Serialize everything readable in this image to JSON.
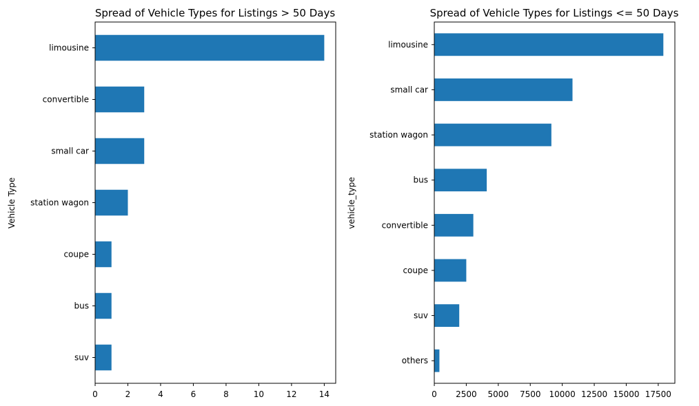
{
  "chart_data": [
    {
      "type": "bar",
      "orientation": "horizontal",
      "title": "Spread of Vehicle Types for Listings > 50 Days",
      "xlabel": "",
      "ylabel": "Vehicle Type",
      "categories": [
        "limousine",
        "convertible",
        "small car",
        "station wagon",
        "coupe",
        "bus",
        "suv"
      ],
      "values": [
        14,
        3,
        3,
        2,
        1,
        1,
        1
      ],
      "xlim": [
        0,
        14.7
      ],
      "xticks": [
        0,
        2,
        4,
        6,
        8,
        10,
        12,
        14
      ],
      "color": "#1f77b4",
      "grid": false
    },
    {
      "type": "bar",
      "orientation": "horizontal",
      "title": "Spread of Vehicle Types for Listings <= 50 Days",
      "xlabel": "",
      "ylabel": "vehicle_type",
      "categories": [
        "limousine",
        "small car",
        "station wagon",
        "bus",
        "convertible",
        "coupe",
        "suv",
        "others"
      ],
      "values": [
        17900,
        10800,
        9150,
        4100,
        3050,
        2500,
        1950,
        400
      ],
      "xlim": [
        0,
        18800
      ],
      "xticks": [
        0,
        2500,
        5000,
        7500,
        10000,
        12500,
        15000,
        17500
      ],
      "color": "#1f77b4",
      "grid": false
    }
  ]
}
